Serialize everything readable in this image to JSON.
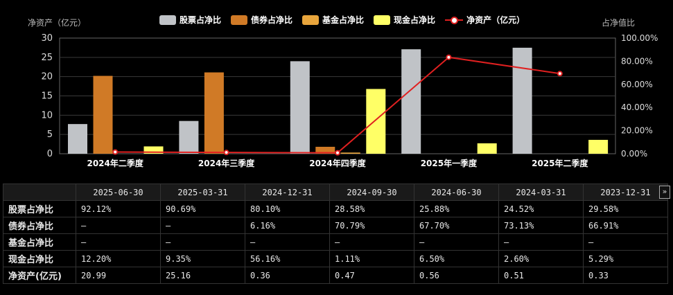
{
  "chart_data": {
    "type": "bar",
    "categories": [
      "2024年二季度",
      "2024年三季度",
      "2024年四季度",
      "2025年一季度",
      "2025年二季度"
    ],
    "series": [
      {
        "name": "股票占净比",
        "values": [
          7.7,
          8.5,
          24.0,
          27.1,
          27.5
        ],
        "color": "#c0c3c7"
      },
      {
        "name": "债券占净比",
        "values": [
          20.2,
          21.1,
          1.8,
          0,
          0
        ],
        "color": "#d07a26"
      },
      {
        "name": "基金占净比",
        "values": [
          0,
          0,
          0.3,
          0,
          0
        ],
        "color": "#e8a53c"
      },
      {
        "name": "现金占净比",
        "values": [
          1.9,
          0,
          16.8,
          2.7,
          3.6
        ],
        "color": "#ffff66"
      },
      {
        "name": "净资产（亿元）",
        "type": "line",
        "axis": "right",
        "values": [
          1.5,
          1.1,
          0.8,
          83.4,
          69.3
        ],
        "color": "#e02020"
      }
    ],
    "ylabel": "净资产（亿元）",
    "y2label": "占净值比",
    "ylim": [
      0,
      30
    ],
    "yticks": [
      "0",
      "5",
      "10",
      "15",
      "20",
      "25",
      "30"
    ],
    "y2lim": [
      0,
      100
    ],
    "y2ticks": [
      "0.00%",
      "20.00%",
      "40.00%",
      "60.00%",
      "80.00%",
      "100.00%"
    ],
    "grid": true,
    "legend": "top"
  },
  "table": {
    "columns": [
      "2025-06-30",
      "2025-03-31",
      "2024-12-31",
      "2024-09-30",
      "2024-06-30",
      "2024-03-31",
      "2023-12-31"
    ],
    "rows": [
      {
        "label": "股票占净比",
        "cells": [
          "92.12%",
          "90.69%",
          "80.10%",
          "28.58%",
          "25.88%",
          "24.52%",
          "29.58%"
        ]
      },
      {
        "label": "债券占净比",
        "cells": [
          "—",
          "—",
          "6.16%",
          "70.79%",
          "67.70%",
          "73.13%",
          "66.91%"
        ]
      },
      {
        "label": "基金占净比",
        "cells": [
          "—",
          "—",
          "—",
          "—",
          "—",
          "—",
          "—"
        ]
      },
      {
        "label": "现金占净比",
        "cells": [
          "12.20%",
          "9.35%",
          "56.16%",
          "1.11%",
          "6.50%",
          "2.60%",
          "5.29%"
        ]
      },
      {
        "label": "净资产(亿元)",
        "cells": [
          "20.99",
          "25.16",
          "0.36",
          "0.47",
          "0.56",
          "0.51",
          "0.33"
        ]
      }
    ],
    "more_label": "»"
  }
}
